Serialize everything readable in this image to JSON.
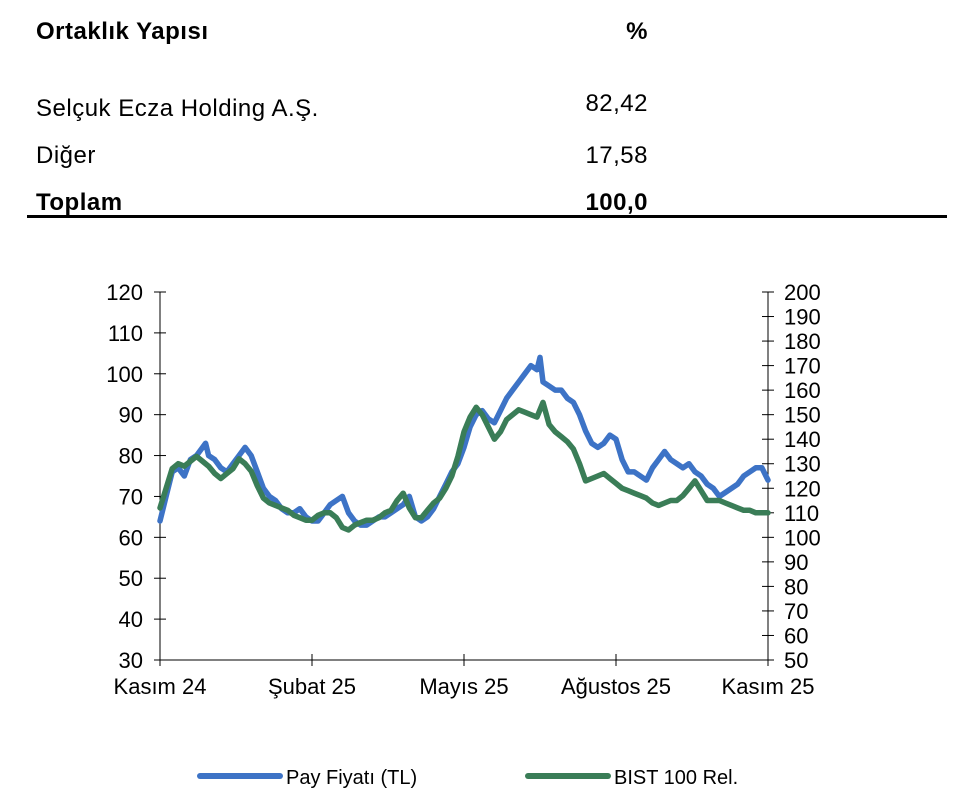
{
  "ownership": {
    "header": {
      "name": "Ortaklık Yapısı",
      "pct": "%"
    },
    "rows": [
      {
        "name": "Selçuk Ecza Holding A.Ş.",
        "pct": "82,42"
      },
      {
        "name": "Diğer",
        "pct": "17,58"
      }
    ],
    "total": {
      "name": "Toplam",
      "pct": "100,0"
    }
  },
  "chart_data": {
    "type": "line",
    "title": "",
    "x_labels": [
      "Kasım 24",
      "Şubat 25",
      "Mayıs 25",
      "Ağustos 25",
      "Kasım 25"
    ],
    "ylim_left": [
      30,
      120
    ],
    "yticks_left": [
      30,
      40,
      50,
      60,
      70,
      80,
      90,
      100,
      110,
      120
    ],
    "ylim_right": [
      50,
      200
    ],
    "yticks_right": [
      50,
      60,
      70,
      80,
      90,
      100,
      110,
      120,
      130,
      140,
      150,
      160,
      170,
      180,
      190,
      200
    ],
    "legend_position": "bottom",
    "grid": false,
    "series": [
      {
        "name": "Pay Fiyatı (TL)",
        "axis": "left",
        "color": "#3d73c6",
        "points": [
          [
            0,
            64
          ],
          [
            0.01,
            70
          ],
          [
            0.02,
            76
          ],
          [
            0.03,
            77
          ],
          [
            0.04,
            75
          ],
          [
            0.05,
            79
          ],
          [
            0.06,
            80
          ],
          [
            0.07,
            82
          ],
          [
            0.075,
            83
          ],
          [
            0.08,
            80
          ],
          [
            0.09,
            79
          ],
          [
            0.1,
            77
          ],
          [
            0.11,
            76
          ],
          [
            0.12,
            78
          ],
          [
            0.13,
            80
          ],
          [
            0.14,
            82
          ],
          [
            0.15,
            80
          ],
          [
            0.16,
            76
          ],
          [
            0.17,
            72
          ],
          [
            0.18,
            70
          ],
          [
            0.19,
            69
          ],
          [
            0.2,
            67
          ],
          [
            0.21,
            66
          ],
          [
            0.22,
            66
          ],
          [
            0.23,
            67
          ],
          [
            0.24,
            65
          ],
          [
            0.25,
            64
          ],
          [
            0.26,
            64
          ],
          [
            0.27,
            66
          ],
          [
            0.28,
            68
          ],
          [
            0.29,
            69
          ],
          [
            0.3,
            70
          ],
          [
            0.31,
            66
          ],
          [
            0.32,
            64
          ],
          [
            0.33,
            63
          ],
          [
            0.34,
            63
          ],
          [
            0.35,
            64
          ],
          [
            0.36,
            65
          ],
          [
            0.37,
            65
          ],
          [
            0.38,
            66
          ],
          [
            0.39,
            67
          ],
          [
            0.4,
            68
          ],
          [
            0.41,
            70
          ],
          [
            0.42,
            65
          ],
          [
            0.43,
            64
          ],
          [
            0.44,
            65
          ],
          [
            0.45,
            67
          ],
          [
            0.46,
            70
          ],
          [
            0.47,
            73
          ],
          [
            0.48,
            76
          ],
          [
            0.49,
            78
          ],
          [
            0.5,
            82
          ],
          [
            0.51,
            87
          ],
          [
            0.52,
            90
          ],
          [
            0.53,
            91
          ],
          [
            0.54,
            89
          ],
          [
            0.55,
            88
          ],
          [
            0.56,
            91
          ],
          [
            0.57,
            94
          ],
          [
            0.58,
            96
          ],
          [
            0.59,
            98
          ],
          [
            0.6,
            100
          ],
          [
            0.61,
            102
          ],
          [
            0.62,
            101
          ],
          [
            0.625,
            104
          ],
          [
            0.63,
            98
          ],
          [
            0.64,
            97
          ],
          [
            0.65,
            96
          ],
          [
            0.66,
            96
          ],
          [
            0.67,
            94
          ],
          [
            0.68,
            93
          ],
          [
            0.69,
            90
          ],
          [
            0.7,
            86
          ],
          [
            0.71,
            83
          ],
          [
            0.72,
            82
          ],
          [
            0.73,
            83
          ],
          [
            0.74,
            85
          ],
          [
            0.75,
            84
          ],
          [
            0.76,
            79
          ],
          [
            0.77,
            76
          ],
          [
            0.78,
            76
          ],
          [
            0.79,
            75
          ],
          [
            0.8,
            74
          ],
          [
            0.81,
            77
          ],
          [
            0.82,
            79
          ],
          [
            0.83,
            81
          ],
          [
            0.84,
            79
          ],
          [
            0.85,
            78
          ],
          [
            0.86,
            77
          ],
          [
            0.87,
            78
          ],
          [
            0.88,
            76
          ],
          [
            0.89,
            75
          ],
          [
            0.9,
            73
          ],
          [
            0.91,
            72
          ],
          [
            0.92,
            70
          ],
          [
            0.93,
            71
          ],
          [
            0.94,
            72
          ],
          [
            0.95,
            73
          ],
          [
            0.96,
            75
          ],
          [
            0.97,
            76
          ],
          [
            0.98,
            77
          ],
          [
            0.99,
            77
          ],
          [
            1,
            74
          ]
        ]
      },
      {
        "name": "BIST 100 Rel.",
        "axis": "right",
        "color": "#3a7d57",
        "points": [
          [
            0,
            112
          ],
          [
            0.01,
            120
          ],
          [
            0.02,
            128
          ],
          [
            0.03,
            130
          ],
          [
            0.04,
            129
          ],
          [
            0.05,
            131
          ],
          [
            0.06,
            133
          ],
          [
            0.07,
            131
          ],
          [
            0.08,
            129
          ],
          [
            0.09,
            126
          ],
          [
            0.1,
            124
          ],
          [
            0.11,
            126
          ],
          [
            0.12,
            128
          ],
          [
            0.13,
            132
          ],
          [
            0.14,
            130
          ],
          [
            0.15,
            127
          ],
          [
            0.16,
            121
          ],
          [
            0.17,
            116
          ],
          [
            0.18,
            114
          ],
          [
            0.19,
            113
          ],
          [
            0.2,
            112
          ],
          [
            0.21,
            111
          ],
          [
            0.22,
            109
          ],
          [
            0.23,
            108
          ],
          [
            0.24,
            107
          ],
          [
            0.25,
            107
          ],
          [
            0.26,
            109
          ],
          [
            0.27,
            110
          ],
          [
            0.28,
            110
          ],
          [
            0.29,
            108
          ],
          [
            0.3,
            104
          ],
          [
            0.31,
            103
          ],
          [
            0.32,
            105
          ],
          [
            0.33,
            106
          ],
          [
            0.34,
            107
          ],
          [
            0.35,
            107
          ],
          [
            0.36,
            108
          ],
          [
            0.37,
            110
          ],
          [
            0.38,
            111
          ],
          [
            0.39,
            115
          ],
          [
            0.4,
            118
          ],
          [
            0.41,
            112
          ],
          [
            0.42,
            108
          ],
          [
            0.43,
            108
          ],
          [
            0.44,
            111
          ],
          [
            0.45,
            114
          ],
          [
            0.46,
            116
          ],
          [
            0.47,
            120
          ],
          [
            0.48,
            125
          ],
          [
            0.49,
            133
          ],
          [
            0.5,
            143
          ],
          [
            0.51,
            149
          ],
          [
            0.52,
            153
          ],
          [
            0.53,
            150
          ],
          [
            0.54,
            145
          ],
          [
            0.55,
            140
          ],
          [
            0.56,
            143
          ],
          [
            0.57,
            148
          ],
          [
            0.58,
            150
          ],
          [
            0.59,
            152
          ],
          [
            0.6,
            151
          ],
          [
            0.61,
            150
          ],
          [
            0.62,
            149
          ],
          [
            0.63,
            155
          ],
          [
            0.64,
            146
          ],
          [
            0.65,
            143
          ],
          [
            0.66,
            141
          ],
          [
            0.67,
            139
          ],
          [
            0.68,
            136
          ],
          [
            0.69,
            130
          ],
          [
            0.7,
            123
          ],
          [
            0.71,
            124
          ],
          [
            0.72,
            125
          ],
          [
            0.73,
            126
          ],
          [
            0.74,
            124
          ],
          [
            0.75,
            122
          ],
          [
            0.76,
            120
          ],
          [
            0.77,
            119
          ],
          [
            0.78,
            118
          ],
          [
            0.79,
            117
          ],
          [
            0.8,
            116
          ],
          [
            0.81,
            114
          ],
          [
            0.82,
            113
          ],
          [
            0.83,
            114
          ],
          [
            0.84,
            115
          ],
          [
            0.85,
            115
          ],
          [
            0.86,
            117
          ],
          [
            0.87,
            120
          ],
          [
            0.88,
            123
          ],
          [
            0.89,
            119
          ],
          [
            0.9,
            115
          ],
          [
            0.91,
            115
          ],
          [
            0.92,
            115
          ],
          [
            0.93,
            114
          ],
          [
            0.94,
            113
          ],
          [
            0.95,
            112
          ],
          [
            0.96,
            111
          ],
          [
            0.97,
            111
          ],
          [
            0.98,
            110
          ],
          [
            0.99,
            110
          ],
          [
            1,
            110
          ]
        ]
      }
    ]
  }
}
